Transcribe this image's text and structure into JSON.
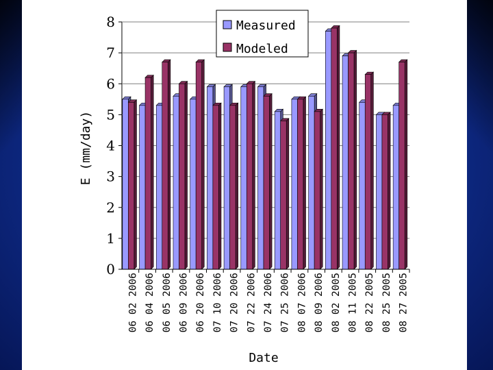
{
  "chart_data": {
    "type": "bar",
    "title": "",
    "xlabel": "Date",
    "ylabel": "E (mm/day)",
    "ylim": [
      0,
      8
    ],
    "yticks": [
      "0",
      "1",
      "2",
      "3",
      "4",
      "5",
      "6",
      "7",
      "8"
    ],
    "grid": true,
    "legend": "top-center",
    "categories": [
      "06 02 2006",
      "06 04 2006",
      "06 05 2006",
      "06 09 2006",
      "06 20 2006",
      "07 10 2006",
      "07 20 2006",
      "07 22 2006",
      "07 24 2006",
      "07 25 2006",
      "08 07 2006",
      "08 09 2006",
      "08 02 2005",
      "08 11 2005",
      "08 22 2005",
      "08 25 2005",
      "08 27 2005"
    ],
    "series": [
      {
        "name": "Measured",
        "color": "#9999ff",
        "values": [
          5.5,
          5.3,
          5.3,
          5.6,
          5.5,
          5.9,
          5.9,
          5.9,
          5.9,
          5.1,
          5.5,
          5.6,
          7.7,
          6.9,
          5.4,
          5.0,
          5.3
        ]
      },
      {
        "name": "Modeled",
        "color": "#993366",
        "values": [
          5.4,
          6.2,
          6.7,
          6.0,
          6.7,
          5.3,
          5.3,
          6.0,
          5.6,
          4.8,
          5.5,
          5.1,
          7.8,
          7.0,
          6.3,
          5.0,
          6.7
        ]
      }
    ]
  }
}
